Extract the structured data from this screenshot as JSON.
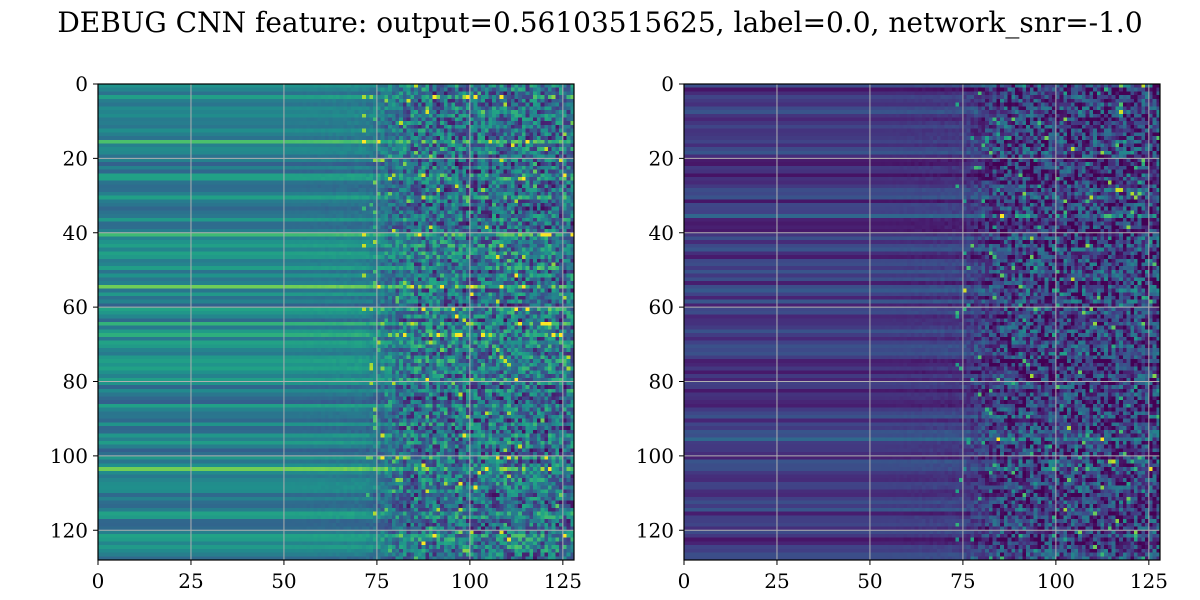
{
  "title": "DEBUG CNN feature: output=0.56103515625, label=0.0, network_snr=-1.0",
  "chart_data": [
    {
      "type": "heatmap",
      "colormap": "viridis",
      "shape": [
        128,
        128
      ],
      "xlim": [
        0,
        128
      ],
      "ylim": [
        128,
        0
      ],
      "x_ticks": [
        0,
        25,
        50,
        75,
        100,
        125
      ],
      "y_ticks": [
        0,
        20,
        40,
        60,
        80,
        100,
        120
      ],
      "grid": true,
      "noise_onset_column": 70,
      "notable_bright_rows": [
        3,
        15,
        40,
        54,
        60,
        64,
        67,
        100,
        103,
        121
      ]
    },
    {
      "type": "heatmap",
      "colormap": "viridis",
      "shape": [
        128,
        128
      ],
      "xlim": [
        0,
        128
      ],
      "ylim": [
        128,
        0
      ],
      "x_ticks": [
        0,
        25,
        50,
        75,
        100,
        125
      ],
      "y_ticks": [
        0,
        20,
        40,
        60,
        80,
        100,
        120
      ],
      "grid": true,
      "noise_onset_column": 72,
      "notable_bright_rows": [
        35,
        55,
        95,
        103,
        127
      ]
    }
  ]
}
